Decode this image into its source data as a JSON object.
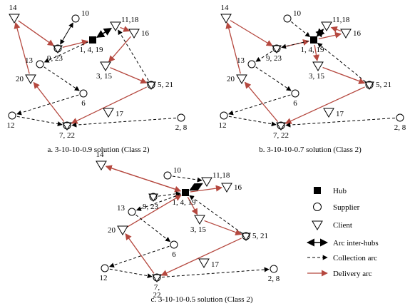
{
  "colors": {
    "delivery": "#b5483f",
    "collection": "#000000",
    "inter_hub": "#000000",
    "node": "#000000"
  },
  "panels": [
    {
      "id": "a",
      "caption": "a. 3-10-10-0.9 solution (Class 2)",
      "labels": {
        "n14": "14",
        "n10": "10",
        "n1118": "11,18",
        "n16": "16",
        "n1419": "1, 4, 19",
        "n923": "9, 23",
        "n13": "13",
        "n315": "3, 15",
        "n20": "20",
        "n6": "6",
        "n521": "5, 21",
        "n17": "17",
        "n12": "12",
        "n722": "7, 22",
        "n28": "2, 8"
      }
    },
    {
      "id": "b",
      "caption": "b. 3-10-10-0.7 solution (Class 2)",
      "labels": {
        "n14": "14",
        "n10": "10",
        "n1118": "11,18",
        "n16": "16",
        "n1419": "1, 4, 19",
        "n923": "9, 23",
        "n13": "13",
        "n315": "3, 15",
        "n20": "20",
        "n6": "6",
        "n521": "5, 21",
        "n17": "17",
        "n12": "12",
        "n722": "7, 22",
        "n28": "2, 8"
      }
    },
    {
      "id": "c",
      "caption": "c. 3-10-10-0.5 solution (Class 2)",
      "labels": {
        "n14": "14",
        "n10": "10",
        "n1118": "11,18",
        "n16": "16",
        "n1419": "1, 4, 19",
        "n923": "9, 23",
        "n13": "13",
        "n315": "3, 15",
        "n20": "20",
        "n6": "6",
        "n521": "5, 21",
        "n17": "17",
        "n12": "12",
        "n722": "7,",
        "n22": "22",
        "n28": "2, 8"
      }
    }
  ],
  "legend": {
    "hub": "Hub",
    "supplier": "Supplier",
    "client": "Client",
    "inter_hubs": "Arc inter-hubs",
    "collection": "Collection arc",
    "delivery": "Delivery arc"
  }
}
